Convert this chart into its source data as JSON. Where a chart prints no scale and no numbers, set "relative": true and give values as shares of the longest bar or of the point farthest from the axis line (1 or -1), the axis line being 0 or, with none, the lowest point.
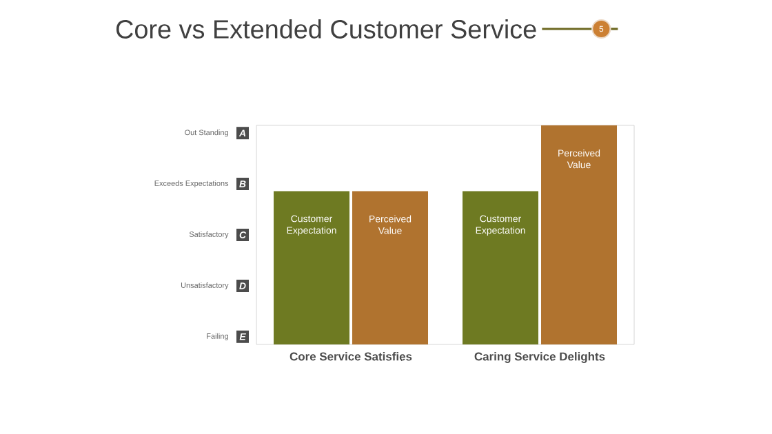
{
  "chart_data": {
    "type": "bar",
    "title": "Core vs Extended Customer Service",
    "categories": [
      "Core Service Satisfies",
      "Caring Service Delights"
    ],
    "series": [
      {
        "name": "Customer Expectation",
        "color": "#6e7a22",
        "values": [
          0.7,
          0.7
        ]
      },
      {
        "name": "Perceived Value",
        "color": "#b0732f",
        "values": [
          0.7,
          1
        ]
      }
    ],
    "relative": true,
    "annotations": [
      "5",
      "Out Standing",
      "A",
      "Exceeds Expectations",
      "B",
      "Satisfactory",
      "C",
      "Unsatisfactory",
      "D",
      "Failing",
      "E"
    ],
    "legend": false,
    "grid": false
  }
}
